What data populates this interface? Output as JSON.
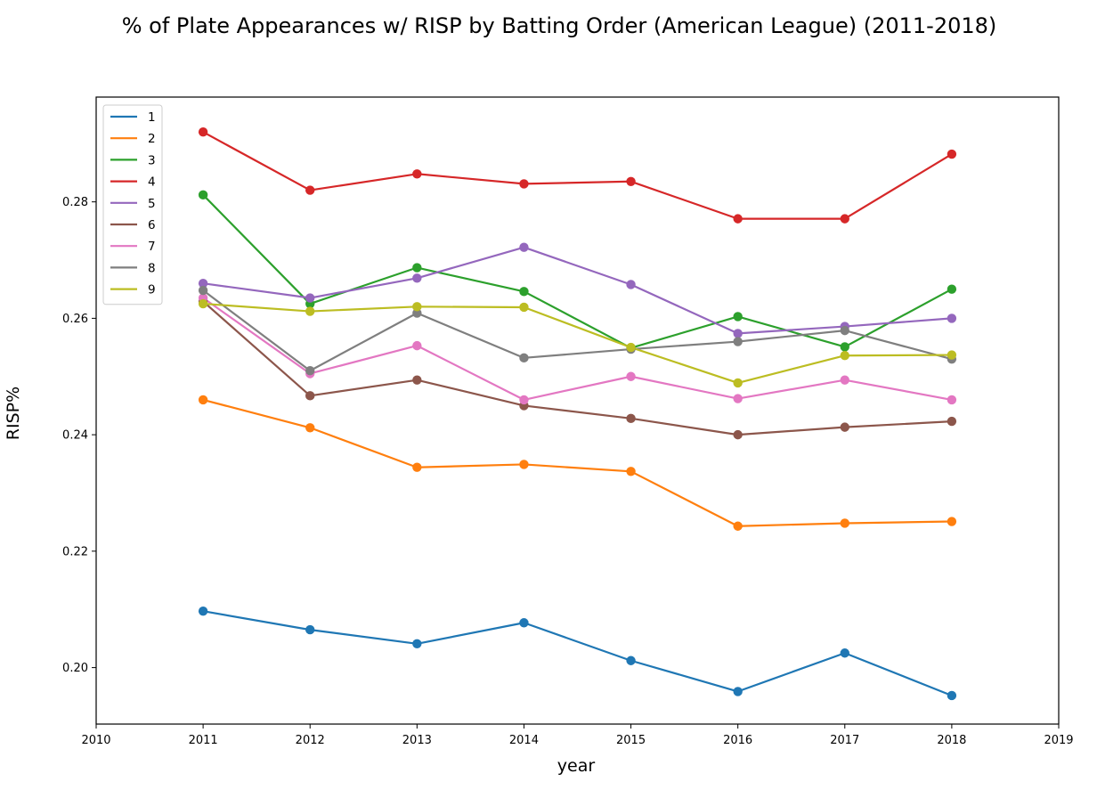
{
  "chart_data": {
    "type": "line",
    "title": "% of Plate Appearances w/ RISP by Batting Order (American League) (2011-2018)",
    "xlabel": "year",
    "ylabel": "RISP%",
    "xlim": [
      2010,
      2019
    ],
    "ylim": [
      0.1903,
      0.298
    ],
    "x_ticks": [
      2010,
      2011,
      2012,
      2013,
      2014,
      2015,
      2016,
      2017,
      2018,
      2019
    ],
    "y_ticks": [
      0.2,
      0.22,
      0.24,
      0.26,
      0.28
    ],
    "y_tick_labels": [
      "0.20",
      "0.22",
      "0.24",
      "0.26",
      "0.28"
    ],
    "grid": false,
    "legend_position": "upper-left",
    "markers": true,
    "x": [
      2011,
      2012,
      2013,
      2014,
      2015,
      2016,
      2017,
      2018
    ],
    "series": [
      {
        "name": "1",
        "color": "#1f77b4",
        "values": [
          0.2097,
          0.2065,
          0.2041,
          0.2077,
          0.2012,
          0.1959,
          0.2025,
          0.1952
        ]
      },
      {
        "name": "2",
        "color": "#ff7f0e",
        "values": [
          0.246,
          0.2412,
          0.2344,
          0.2349,
          0.2337,
          0.2243,
          0.2248,
          0.2251
        ]
      },
      {
        "name": "3",
        "color": "#2ca02c",
        "values": [
          0.2812,
          0.2625,
          0.2687,
          0.2646,
          0.2549,
          0.2603,
          0.2551,
          0.265
        ]
      },
      {
        "name": "4",
        "color": "#d62728",
        "values": [
          0.292,
          0.282,
          0.2848,
          0.2831,
          0.2835,
          0.2771,
          0.2771,
          0.2882
        ]
      },
      {
        "name": "5",
        "color": "#9467bd",
        "values": [
          0.266,
          0.2635,
          0.2669,
          0.2722,
          0.2658,
          0.2574,
          0.2586,
          0.26
        ]
      },
      {
        "name": "6",
        "color": "#8c564b",
        "values": [
          0.2629,
          0.2467,
          0.2494,
          0.245,
          0.2428,
          0.24,
          0.2413,
          0.2423
        ]
      },
      {
        "name": "7",
        "color": "#e377c2",
        "values": [
          0.2635,
          0.2505,
          0.2553,
          0.246,
          0.25,
          0.2462,
          0.2494,
          0.246
        ]
      },
      {
        "name": "8",
        "color": "#7f7f7f",
        "values": [
          0.2648,
          0.251,
          0.2609,
          0.2532,
          0.2547,
          0.256,
          0.2579,
          0.253
        ]
      },
      {
        "name": "9",
        "color": "#bcbd22",
        "values": [
          0.2625,
          0.2612,
          0.262,
          0.2619,
          0.255,
          0.2489,
          0.2536,
          0.2537
        ]
      }
    ]
  }
}
